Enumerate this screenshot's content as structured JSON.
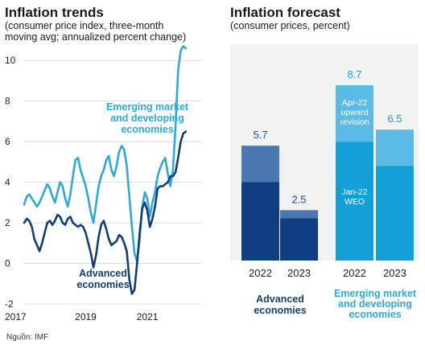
{
  "source": "Nguồn: IMF",
  "colors": {
    "em_line": "#2fa9d9",
    "adv_line": "#123d73",
    "grid": "#d9d9d9",
    "bg_panel": "#f2f2f2",
    "adv_base": "#0f3f82",
    "adv_rev": "#4a78b0",
    "em_base": "#159fd9",
    "em_rev": "#5cbbe6"
  },
  "chart_data": [
    {
      "type": "line",
      "title": "Inflation trends",
      "subtitle_lines": [
        "(consumer price index, three-month",
        "moving avg; annualized percent change)"
      ],
      "ylim": [
        -2,
        10.8
      ],
      "yticks": [
        "-2",
        "0",
        "2",
        "4",
        "6",
        "8",
        "10"
      ],
      "xlim": [
        2017.0,
        2022.75
      ],
      "xticks": [
        {
          "value": 2017,
          "label": "2017"
        },
        {
          "value": 2019,
          "label": "2019"
        },
        {
          "value": 2021,
          "label": "2021"
        }
      ],
      "series": [
        {
          "name": "Emerging market and developing economies",
          "label_lines": [
            "Emerging market",
            "and developing",
            "economies"
          ],
          "color": "#2fa9d9",
          "x": [
            2017.0,
            2017.083,
            2017.167,
            2017.25,
            2017.333,
            2017.417,
            2017.5,
            2017.583,
            2017.667,
            2017.75,
            2017.833,
            2017.917,
            2018.0,
            2018.083,
            2018.167,
            2018.25,
            2018.333,
            2018.417,
            2018.5,
            2018.583,
            2018.667,
            2018.75,
            2018.833,
            2018.917,
            2019.0,
            2019.083,
            2019.167,
            2019.25,
            2019.333,
            2019.417,
            2019.5,
            2019.583,
            2019.667,
            2019.75,
            2019.833,
            2019.917,
            2020.0,
            2020.083,
            2020.167,
            2020.25,
            2020.333,
            2020.417,
            2020.5,
            2020.583,
            2020.667,
            2020.75,
            2020.833,
            2020.917,
            2021.0,
            2021.083,
            2021.167,
            2021.25,
            2021.333,
            2021.417,
            2021.5,
            2021.583,
            2021.667,
            2021.75,
            2021.833,
            2021.917,
            2022.0,
            2022.083,
            2022.167,
            2022.25
          ],
          "y": [
            2.9,
            3.3,
            3.4,
            3.2,
            3.0,
            2.8,
            3.0,
            3.3,
            3.6,
            3.9,
            3.7,
            3.3,
            3.0,
            3.5,
            4.0,
            3.8,
            3.2,
            2.8,
            3.4,
            4.3,
            5.1,
            5.2,
            4.6,
            4.2,
            3.8,
            3.2,
            2.5,
            2.0,
            2.9,
            3.8,
            4.3,
            4.6,
            5.1,
            5.3,
            4.6,
            4.3,
            4.8,
            5.5,
            5.8,
            5.6,
            4.8,
            3.3,
            1.8,
            0.5,
            0.1,
            1.2,
            2.8,
            3.5,
            3.2,
            2.3,
            3.0,
            3.5,
            4.3,
            4.7,
            5.0,
            5.2,
            4.4,
            3.8,
            4.6,
            6.8,
            9.5,
            10.5,
            10.7,
            10.6
          ]
        },
        {
          "name": "Advanced economies",
          "label_lines": [
            "Advanced",
            "economies"
          ],
          "color": "#123d73",
          "x": [
            2017.0,
            2017.083,
            2017.167,
            2017.25,
            2017.333,
            2017.417,
            2017.5,
            2017.583,
            2017.667,
            2017.75,
            2017.833,
            2017.917,
            2018.0,
            2018.083,
            2018.167,
            2018.25,
            2018.333,
            2018.417,
            2018.5,
            2018.583,
            2018.667,
            2018.75,
            2018.833,
            2018.917,
            2019.0,
            2019.083,
            2019.167,
            2019.25,
            2019.333,
            2019.417,
            2019.5,
            2019.583,
            2019.667,
            2019.75,
            2019.833,
            2019.917,
            2020.0,
            2020.083,
            2020.167,
            2020.25,
            2020.333,
            2020.417,
            2020.5,
            2020.583,
            2020.667,
            2020.75,
            2020.833,
            2020.917,
            2021.0,
            2021.083,
            2021.167,
            2021.25,
            2021.333,
            2021.417,
            2021.5,
            2021.583,
            2021.667,
            2021.75,
            2021.833,
            2021.917,
            2022.0,
            2022.083,
            2022.167,
            2022.25
          ],
          "y": [
            2.0,
            2.2,
            2.1,
            1.8,
            1.2,
            0.9,
            0.6,
            1.0,
            1.5,
            2.0,
            2.1,
            1.9,
            2.1,
            2.4,
            2.3,
            2.0,
            1.9,
            2.2,
            2.3,
            2.0,
            1.9,
            1.8,
            1.9,
            1.8,
            1.5,
            1.0,
            0.5,
            -0.2,
            0.4,
            1.3,
            1.9,
            2.1,
            1.7,
            1.2,
            0.9,
            1.0,
            1.1,
            1.4,
            1.3,
            1.0,
            0.6,
            -0.8,
            -1.5,
            -1.3,
            0.0,
            1.5,
            2.7,
            3.0,
            2.6,
            1.8,
            2.2,
            2.8,
            3.7,
            3.8,
            3.8,
            3.9,
            4.0,
            4.3,
            4.3,
            4.5,
            5.2,
            6.0,
            6.4,
            6.5
          ]
        }
      ]
    },
    {
      "type": "bar",
      "stacked": true,
      "title": "Inflation forecast",
      "subtitle": "(consumer prices, percent)",
      "ylim": [
        0,
        9.5
      ],
      "groups": [
        {
          "name": "Advanced economies",
          "label_lines": [
            "Advanced",
            "economies"
          ]
        },
        {
          "name": "Emerging market and developing economies",
          "label_lines": [
            "Emerging market",
            "and developing",
            "economies"
          ]
        }
      ],
      "categories": [
        "2022",
        "2023",
        "2022",
        "2023"
      ],
      "bars": [
        {
          "group": 0,
          "category": "2022",
          "base": 3.9,
          "total": 5.7,
          "total_label": "5.7"
        },
        {
          "group": 0,
          "category": "2023",
          "base": 2.1,
          "total": 2.5,
          "total_label": "2.5"
        },
        {
          "group": 1,
          "category": "2022",
          "base": 5.9,
          "total": 8.7,
          "total_label": "8.7"
        },
        {
          "group": 1,
          "category": "2023",
          "base": 4.7,
          "total": 6.5,
          "total_label": "6.5"
        }
      ],
      "segment_labels": {
        "revision_lines": [
          "Apr-22",
          "upward",
          "revision"
        ],
        "base_lines": [
          "Jan-22",
          "WEO"
        ]
      }
    }
  ]
}
